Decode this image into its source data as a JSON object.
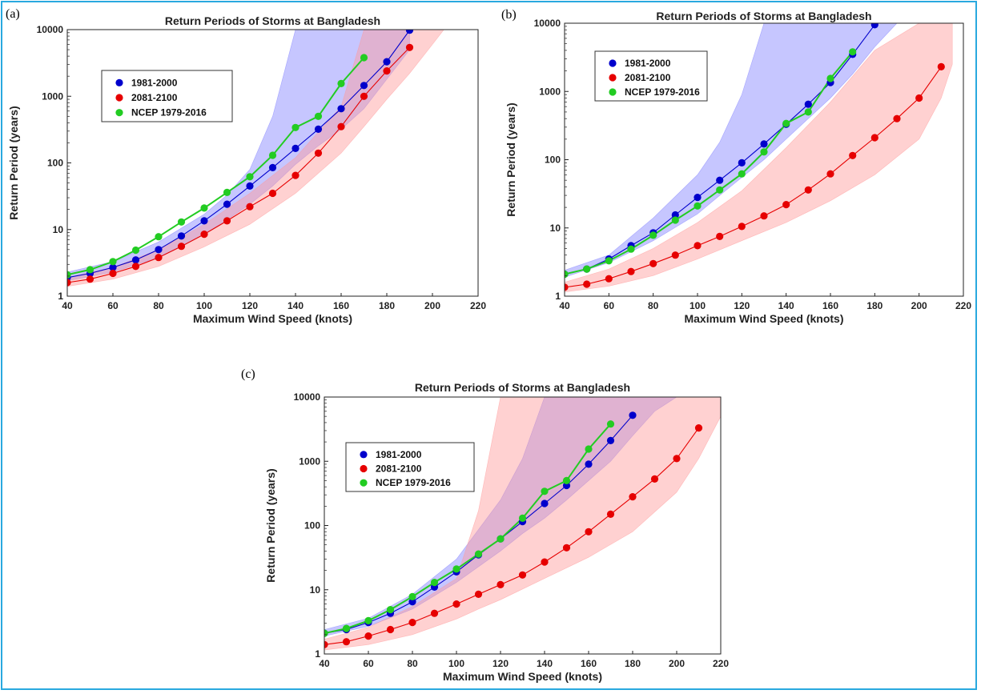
{
  "figure": {
    "border_color": "#29a9df"
  },
  "chart_data": [
    {
      "panel_label": "(a)",
      "type": "line",
      "title": "Return Periods of Storms at Bangladesh",
      "xlabel": "Maximum Wind Speed (knots)",
      "ylabel": "Return Period (years)",
      "xlim": [
        40,
        220
      ],
      "ylim": [
        1,
        10000
      ],
      "yscale": "log",
      "xticks": [
        "40",
        "60",
        "80",
        "100",
        "120",
        "140",
        "160",
        "180",
        "200",
        "220"
      ],
      "yticks": [
        "1",
        "10",
        "100",
        "1000",
        "10000"
      ],
      "legend_position": "upper-left",
      "series": [
        {
          "name": "1981-2000",
          "color": "#0000cc",
          "fill": "#8080ff",
          "x": [
            40,
            50,
            60,
            70,
            80,
            90,
            100,
            110,
            120,
            130,
            140,
            150,
            160,
            170,
            180,
            190
          ],
          "y": [
            1.9,
            2.2,
            2.7,
            3.5,
            5,
            8,
            13.5,
            24,
            45,
            85,
            165,
            320,
            650,
            1450,
            3300,
            9800
          ],
          "band_x": [
            40,
            60,
            80,
            100,
            110,
            120,
            130,
            140,
            150,
            160,
            170,
            180,
            190
          ],
          "band_low": [
            1.7,
            2.3,
            3.8,
            8.5,
            14,
            24,
            45,
            95,
            180,
            320,
            650,
            1800,
            5000
          ],
          "band_high": [
            2.3,
            3.3,
            6.5,
            17,
            33,
            80,
            500,
            10000,
            10000,
            10000,
            10000,
            10000,
            10000
          ]
        },
        {
          "name": "2081-2100",
          "color": "#e60000",
          "fill": "#ff9999",
          "x": [
            40,
            50,
            60,
            70,
            80,
            90,
            100,
            110,
            120,
            130,
            140,
            150,
            160,
            170,
            180,
            190
          ],
          "y": [
            1.6,
            1.8,
            2.2,
            2.8,
            3.8,
            5.6,
            8.5,
            13.5,
            22,
            35,
            65,
            140,
            350,
            1000,
            2400,
            5400
          ],
          "band_x": [
            40,
            60,
            80,
            100,
            120,
            140,
            160,
            170,
            180,
            190,
            200,
            205
          ],
          "band_low": [
            1.4,
            1.8,
            2.8,
            5.5,
            12,
            35,
            140,
            350,
            900,
            2200,
            6000,
            10000
          ],
          "band_high": [
            1.9,
            2.7,
            5,
            12,
            35,
            120,
            700,
            10000,
            10000,
            10000,
            10000,
            10000
          ]
        },
        {
          "name": "NCEP 1979-2016",
          "color": "#22cc22",
          "x": [
            40,
            50,
            60,
            70,
            80,
            90,
            100,
            110,
            120,
            130,
            140,
            150,
            160,
            170
          ],
          "y": [
            2.1,
            2.5,
            3.3,
            4.9,
            7.8,
            13,
            21,
            36,
            62,
            130,
            340,
            500,
            1550,
            3800
          ]
        }
      ]
    },
    {
      "panel_label": "(b)",
      "type": "line",
      "title": "Return Periods of Storms at Bangladesh",
      "xlabel": "Maximum Wind Speed (knots)",
      "ylabel": "Return Period (years)",
      "xlim": [
        40,
        220
      ],
      "ylim": [
        1,
        10000
      ],
      "yscale": "log",
      "xticks": [
        "40",
        "60",
        "80",
        "100",
        "120",
        "140",
        "160",
        "180",
        "200",
        "220"
      ],
      "yticks": [
        "1",
        "10",
        "100",
        "1000",
        "10000"
      ],
      "legend_position": "upper-left",
      "series": [
        {
          "name": "1981-2000",
          "color": "#0000cc",
          "fill": "#8080ff",
          "x": [
            40,
            50,
            60,
            70,
            80,
            90,
            100,
            110,
            120,
            130,
            140,
            150,
            160,
            170,
            180
          ],
          "y": [
            2.1,
            2.5,
            3.5,
            5.5,
            8.5,
            15.5,
            28,
            50,
            90,
            170,
            330,
            650,
            1350,
            3500,
            9500
          ],
          "band_x": [
            40,
            60,
            80,
            100,
            110,
            120,
            130,
            140,
            150,
            160,
            170,
            180,
            190,
            200
          ],
          "band_low": [
            1.9,
            3.1,
            6.5,
            16,
            30,
            55,
            100,
            200,
            400,
            800,
            1800,
            4500,
            10000,
            10000
          ],
          "band_high": [
            2.4,
            4,
            14,
            60,
            180,
            900,
            10000,
            10000,
            10000,
            10000,
            10000,
            10000,
            10000,
            10000
          ]
        },
        {
          "name": "2081-2100",
          "color": "#e60000",
          "fill": "#ff9999",
          "x": [
            40,
            50,
            60,
            70,
            80,
            90,
            100,
            110,
            120,
            130,
            140,
            150,
            160,
            170,
            180,
            190,
            200,
            210
          ],
          "y": [
            1.35,
            1.5,
            1.8,
            2.3,
            3,
            4,
            5.5,
            7.5,
            10.5,
            15,
            22,
            36,
            62,
            115,
            210,
            400,
            800,
            2300
          ],
          "band_x": [
            40,
            60,
            80,
            100,
            120,
            140,
            160,
            180,
            200,
            210,
            215
          ],
          "band_low": [
            1.15,
            1.4,
            2,
            3.5,
            6.5,
            12,
            25,
            60,
            200,
            800,
            2500
          ],
          "band_high": [
            1.6,
            2.5,
            5,
            12,
            35,
            150,
            700,
            4000,
            10000,
            10000,
            10000
          ]
        },
        {
          "name": "NCEP 1979-2016",
          "color": "#22cc22",
          "x": [
            40,
            50,
            60,
            70,
            80,
            90,
            100,
            110,
            120,
            130,
            140,
            150,
            160,
            170
          ],
          "y": [
            2.1,
            2.5,
            3.3,
            4.9,
            7.8,
            13,
            21,
            36,
            62,
            130,
            340,
            500,
            1550,
            3800
          ]
        }
      ]
    },
    {
      "panel_label": "(c)",
      "type": "line",
      "title": "Return Periods of Storms at Bangladesh",
      "xlabel": "Maximum Wind Speed (knots)",
      "ylabel": "Return Period (years)",
      "xlim": [
        40,
        220
      ],
      "ylim": [
        1,
        10000
      ],
      "yscale": "log",
      "xticks": [
        "40",
        "60",
        "80",
        "100",
        "120",
        "140",
        "160",
        "180",
        "200",
        "220"
      ],
      "yticks": [
        "1",
        "10",
        "100",
        "1000",
        "10000"
      ],
      "legend_position": "upper-left",
      "series": [
        {
          "name": "1981-2000",
          "color": "#0000cc",
          "fill": "#8080ff",
          "x": [
            40,
            50,
            60,
            70,
            80,
            90,
            100,
            110,
            120,
            130,
            140,
            150,
            160,
            170,
            180
          ],
          "y": [
            2.1,
            2.4,
            3.1,
            4.3,
            6.5,
            11,
            19,
            35,
            62,
            115,
            220,
            420,
            900,
            2100,
            5200
          ],
          "band_x": [
            40,
            60,
            80,
            100,
            120,
            130,
            140,
            150,
            160,
            170,
            180,
            190,
            200
          ],
          "band_low": [
            1.9,
            2.7,
            5,
            13,
            40,
            75,
            130,
            250,
            500,
            1000,
            2500,
            6000,
            10000
          ],
          "band_high": [
            2.4,
            3.6,
            8.5,
            30,
            250,
            1100,
            10000,
            10000,
            10000,
            10000,
            10000,
            10000,
            10000
          ]
        },
        {
          "name": "2081-2100",
          "color": "#e60000",
          "fill": "#ff9999",
          "x": [
            40,
            50,
            60,
            70,
            80,
            90,
            100,
            110,
            120,
            130,
            140,
            150,
            160,
            170,
            180,
            190,
            200,
            210
          ],
          "y": [
            1.4,
            1.55,
            1.9,
            2.4,
            3.1,
            4.3,
            6,
            8.5,
            12,
            17,
            27,
            45,
            80,
            150,
            280,
            530,
            1100,
            3300
          ],
          "band_x": [
            40,
            60,
            80,
            100,
            110,
            120,
            140,
            160,
            180,
            200,
            210,
            220
          ],
          "band_low": [
            1.15,
            1.4,
            2,
            3.5,
            5,
            7,
            15,
            32,
            80,
            330,
            1100,
            5000
          ],
          "band_high": [
            1.7,
            2.6,
            5.5,
            15,
            170,
            10000,
            10000,
            10000,
            10000,
            10000,
            10000,
            10000
          ]
        },
        {
          "name": "NCEP 1979-2016",
          "color": "#22cc22",
          "x": [
            40,
            50,
            60,
            70,
            80,
            90,
            100,
            110,
            120,
            130,
            140,
            150,
            160,
            170
          ],
          "y": [
            2.1,
            2.5,
            3.3,
            4.9,
            7.8,
            13,
            21,
            36,
            62,
            130,
            340,
            500,
            1550,
            3800
          ]
        }
      ]
    }
  ]
}
